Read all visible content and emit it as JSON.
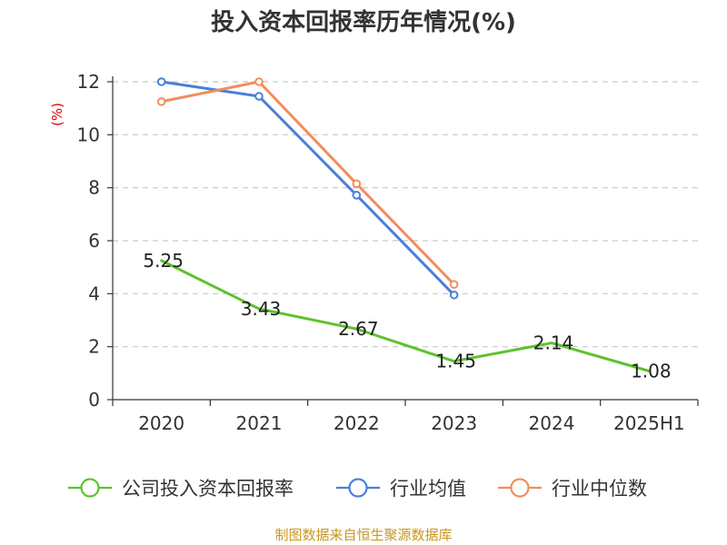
{
  "title": "投入资本回报率历年情况(%)",
  "source": "制图数据来自恒生聚源数据库",
  "chart_data": {
    "type": "line",
    "title": "投入资本回报率历年情况(%)",
    "ylabel": "(%)",
    "xlabel": "",
    "categories": [
      "2020",
      "2021",
      "2022",
      "2023",
      "2024",
      "2025H1"
    ],
    "ylim": [
      0,
      12
    ],
    "yticks": [
      0,
      2,
      4,
      6,
      8,
      10,
      12
    ],
    "grid": true,
    "legend_position": "bottom",
    "series": [
      {
        "name": "公司投入资本回报率",
        "color": "#5cc22c",
        "values": [
          5.25,
          3.43,
          2.67,
          1.45,
          2.14,
          1.08
        ],
        "labels": [
          "5.25",
          "3.43",
          "2.67",
          "1.45",
          "2.14",
          "1.08"
        ],
        "show_labels": true,
        "show_markers": false
      },
      {
        "name": "行业均值",
        "color": "#4a7fdc",
        "values": [
          12.0,
          11.45,
          7.72,
          3.95,
          null,
          null
        ],
        "show_labels": false,
        "show_markers": true
      },
      {
        "name": "行业中位数",
        "color": "#f48c5c",
        "values": [
          11.25,
          12.0,
          8.15,
          4.35,
          null,
          null
        ],
        "show_labels": false,
        "show_markers": true
      }
    ]
  }
}
